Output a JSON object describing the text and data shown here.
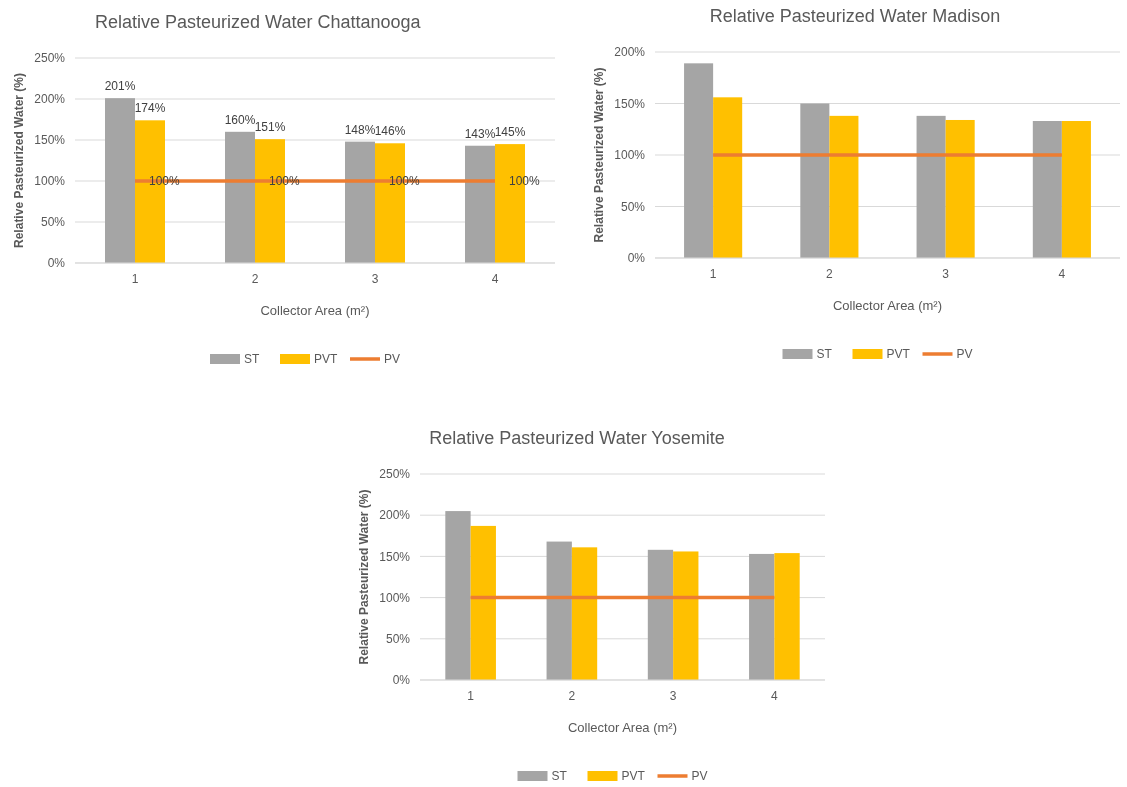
{
  "chart_data": [
    {
      "type": "bar",
      "title": "Relative Pasteurized Water Chattanooga",
      "xlabel": "Collector Area (m²)",
      "ylabel": "Relative Pasteurized Water (%)",
      "categories": [
        "1",
        "2",
        "3",
        "4"
      ],
      "series": [
        {
          "name": "ST",
          "color": "#a5a5a5",
          "values": [
            201,
            160,
            148,
            143
          ],
          "value_labels": [
            "201%",
            "160%",
            "148%",
            "143%"
          ]
        },
        {
          "name": "PVT",
          "color": "#ffc000",
          "values": [
            174,
            151,
            146,
            145
          ],
          "value_labels": [
            "174%",
            "151%",
            "146%",
            "145%"
          ]
        },
        {
          "name": "PV",
          "type": "line",
          "color": "#ed7d31",
          "values": [
            100,
            100,
            100,
            100
          ],
          "value_labels": [
            "100%",
            "100%",
            "100%",
            "100%"
          ]
        }
      ],
      "ylim": [
        0,
        250
      ],
      "yticks": [
        {
          "value": 0,
          "label": "0%"
        },
        {
          "value": 50,
          "label": "50%"
        },
        {
          "value": 100,
          "label": "100%"
        },
        {
          "value": 150,
          "label": "150%"
        },
        {
          "value": 200,
          "label": "200%"
        },
        {
          "value": 250,
          "label": "250%"
        }
      ],
      "grid": "y",
      "legend": "bottom",
      "marker": "none"
    },
    {
      "type": "bar",
      "title": "Relative Pasteurized Water Madison",
      "xlabel": "Collector Area (m²)",
      "ylabel": "Relative Pasteurized Water (%)",
      "categories": [
        "1",
        "2",
        "3",
        "4"
      ],
      "series": [
        {
          "name": "ST",
          "color": "#a5a5a5",
          "values": [
            189,
            150,
            138,
            133
          ]
        },
        {
          "name": "PVT",
          "color": "#ffc000",
          "values": [
            156,
            138,
            134,
            133
          ]
        },
        {
          "name": "PV",
          "type": "line",
          "color": "#ed7d31",
          "values": [
            100,
            100,
            100,
            100
          ]
        }
      ],
      "ylim": [
        0,
        200
      ],
      "yticks": [
        {
          "value": 0,
          "label": "0%"
        },
        {
          "value": 50,
          "label": "50%"
        },
        {
          "value": 100,
          "label": "100%"
        },
        {
          "value": 150,
          "label": "150%"
        },
        {
          "value": 200,
          "label": "200%"
        }
      ],
      "grid": "y",
      "legend": "bottom",
      "marker": "none"
    },
    {
      "type": "bar",
      "title": "Relative Pasteurized Water Yosemite",
      "xlabel": "Collector Area (m²)",
      "ylabel": "Relative Pasteurized Water (%)",
      "categories": [
        "1",
        "2",
        "3",
        "4"
      ],
      "series": [
        {
          "name": "ST",
          "color": "#a5a5a5",
          "values": [
            205,
            168,
            158,
            153
          ]
        },
        {
          "name": "PVT",
          "color": "#ffc000",
          "values": [
            187,
            161,
            156,
            154
          ]
        },
        {
          "name": "PV",
          "type": "line",
          "color": "#ed7d31",
          "values": [
            100,
            100,
            100,
            100
          ]
        }
      ],
      "ylim": [
        0,
        250
      ],
      "yticks": [
        {
          "value": 0,
          "label": "0%"
        },
        {
          "value": 50,
          "label": "50%"
        },
        {
          "value": 100,
          "label": "100%"
        },
        {
          "value": 150,
          "label": "150%"
        },
        {
          "value": 200,
          "label": "200%"
        },
        {
          "value": 250,
          "label": "250%"
        }
      ],
      "grid": "y",
      "legend": "bottom",
      "marker": "none"
    }
  ]
}
